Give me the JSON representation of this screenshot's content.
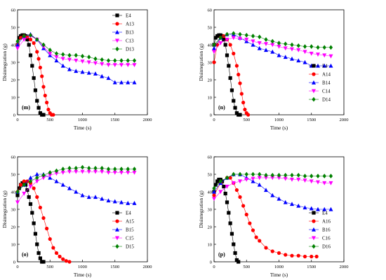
{
  "colors": {
    "E4": "#000000",
    "A": "#ff0000",
    "B": "#0000ff",
    "C": "#ff00ff",
    "D": "#008000"
  },
  "chart_data": [
    {
      "type": "scatter",
      "panel_label": "(m)",
      "xlabel": "Time (s)",
      "ylabel": "Disintegration (g)",
      "xlim": [
        0,
        2000
      ],
      "ylim": [
        0,
        60
      ],
      "xticks": [
        "0",
        "500",
        "1000",
        "1500",
        "2000"
      ],
      "yticks": [
        "0",
        "10",
        "20",
        "30",
        "40",
        "50",
        "60"
      ],
      "legend_position": "top-right",
      "series": [
        {
          "name": "E4",
          "marker": "square",
          "x": [
            0,
            25,
            50,
            75,
            100,
            125,
            150,
            175,
            200,
            225,
            250,
            275,
            300,
            325,
            350,
            375,
            400
          ],
          "y": [
            40,
            44,
            45,
            45.5,
            45.5,
            45,
            43,
            40,
            34,
            28,
            21,
            14,
            8,
            4,
            1,
            0,
            0
          ]
        },
        {
          "name": "A13",
          "marker": "circle",
          "x": [
            0,
            50,
            100,
            150,
            200,
            250,
            300,
            325,
            350,
            375,
            400,
            425,
            450,
            475,
            500,
            525,
            550
          ],
          "y": [
            40,
            44,
            45,
            44.5,
            43,
            41,
            36,
            32,
            27,
            22,
            16,
            11,
            7,
            3,
            1,
            0,
            0
          ]
        },
        {
          "name": "B13",
          "marker": "triangle-up",
          "x": [
            0,
            100,
            200,
            300,
            400,
            500,
            600,
            700,
            800,
            900,
            1000,
            1100,
            1200,
            1300,
            1400,
            1500,
            1600,
            1700,
            1800
          ],
          "y": [
            40,
            45,
            46,
            43,
            38,
            34,
            31,
            28,
            26,
            25,
            24.5,
            24,
            23.5,
            22,
            21,
            18.5,
            18.5,
            18.5,
            18.5
          ]
        },
        {
          "name": "C13",
          "marker": "triangle-down",
          "x": [
            0,
            100,
            200,
            300,
            400,
            500,
            600,
            700,
            800,
            900,
            1000,
            1100,
            1200,
            1300,
            1400,
            1500,
            1600,
            1700,
            1800
          ],
          "y": [
            38,
            43,
            45,
            43,
            39,
            35,
            33,
            32,
            31.5,
            31,
            30.5,
            30,
            29.5,
            29,
            28.5,
            28.5,
            28.5,
            28.5,
            28.5
          ]
        },
        {
          "name": "D13",
          "marker": "diamond",
          "x": [
            0,
            100,
            200,
            300,
            400,
            500,
            600,
            700,
            800,
            900,
            1000,
            1100,
            1200,
            1300,
            1400,
            1500,
            1600,
            1700,
            1800
          ],
          "y": [
            42,
            45,
            45.5,
            43,
            40,
            37,
            35,
            34.5,
            34,
            34,
            33.5,
            33,
            32,
            31.5,
            31,
            31,
            31,
            31,
            31
          ]
        }
      ]
    },
    {
      "type": "scatter",
      "panel_label": "(n)",
      "xlabel": "Time (s)",
      "ylabel": "Disintegration (g)",
      "xlim": [
        0,
        2000
      ],
      "ylim": [
        0,
        60
      ],
      "xticks": [
        "0",
        "500",
        "1000",
        "1500",
        "2000"
      ],
      "yticks": [
        "0",
        "10",
        "20",
        "30",
        "40",
        "50",
        "60"
      ],
      "legend_position": "bottom-right",
      "series": [
        {
          "name": "E4",
          "marker": "square",
          "x": [
            0,
            25,
            50,
            75,
            100,
            125,
            150,
            175,
            200,
            225,
            250,
            275,
            300,
            325,
            350,
            375,
            400
          ],
          "y": [
            40,
            44,
            45,
            45.5,
            45.5,
            45,
            43,
            40,
            34,
            28,
            21,
            14,
            8,
            4,
            1,
            0,
            0
          ]
        },
        {
          "name": "A14",
          "marker": "circle",
          "x": [
            0,
            50,
            100,
            150,
            200,
            250,
            300,
            350,
            375,
            400,
            425,
            450,
            475,
            500,
            525
          ],
          "y": [
            30,
            40,
            44,
            45,
            43,
            40,
            35,
            28,
            23,
            18,
            12,
            7,
            3,
            1,
            0
          ]
        },
        {
          "name": "B14",
          "marker": "triangle-up",
          "x": [
            0,
            100,
            200,
            300,
            400,
            500,
            600,
            700,
            800,
            900,
            1000,
            1100,
            1200,
            1300,
            1400,
            1500,
            1600,
            1700,
            1800
          ],
          "y": [
            38,
            44,
            46,
            46,
            44,
            42,
            40,
            38,
            37,
            36,
            34,
            33,
            32,
            31,
            30,
            28,
            28,
            28,
            28
          ]
        },
        {
          "name": "C14",
          "marker": "triangle-down",
          "x": [
            0,
            100,
            200,
            300,
            400,
            500,
            600,
            700,
            800,
            900,
            1000,
            1100,
            1200,
            1300,
            1400,
            1500,
            1600,
            1700,
            1800
          ],
          "y": [
            36,
            41,
            43,
            44,
            43.5,
            43,
            42,
            41,
            40.5,
            40,
            39,
            38,
            37.5,
            37,
            36,
            35,
            34.5,
            34,
            33.5
          ]
        },
        {
          "name": "D14",
          "marker": "diamond",
          "x": [
            0,
            100,
            200,
            300,
            400,
            500,
            600,
            700,
            800,
            900,
            1000,
            1100,
            1200,
            1300,
            1400,
            1500,
            1600,
            1700,
            1800
          ],
          "y": [
            40,
            44,
            46,
            46.5,
            46,
            45.5,
            45,
            44.5,
            43,
            42,
            41,
            40.5,
            40,
            39.5,
            39,
            39,
            38.5,
            38.5,
            38.5
          ]
        }
      ]
    },
    {
      "type": "scatter",
      "panel_label": "(o)",
      "xlabel": "Time (s)",
      "ylabel": "Disintegration (g)",
      "xlim": [
        0,
        2000
      ],
      "ylim": [
        0,
        60
      ],
      "xticks": [
        "0",
        "500",
        "1000",
        "1500",
        "2000"
      ],
      "yticks": [
        "0",
        "10",
        "20",
        "30",
        "40",
        "50",
        "60"
      ],
      "legend_position": "bottom-right",
      "series": [
        {
          "name": "E4",
          "marker": "square",
          "x": [
            0,
            25,
            50,
            75,
            100,
            125,
            150,
            175,
            200,
            225,
            250,
            275,
            300,
            325,
            350,
            375,
            400
          ],
          "y": [
            38,
            42,
            44,
            45,
            45,
            44,
            41,
            37,
            33,
            28,
            22,
            16,
            10,
            5,
            2,
            0,
            0
          ]
        },
        {
          "name": "A15",
          "marker": "circle",
          "x": [
            0,
            50,
            100,
            150,
            200,
            250,
            300,
            350,
            400,
            450,
            500,
            550,
            600,
            650,
            700,
            750,
            800
          ],
          "y": [
            40,
            44,
            46,
            46,
            45,
            42,
            37,
            31,
            25,
            19,
            13,
            8,
            5,
            3,
            1.5,
            0.5,
            0
          ]
        },
        {
          "name": "B15",
          "marker": "triangle-up",
          "x": [
            0,
            100,
            200,
            300,
            400,
            500,
            600,
            700,
            800,
            900,
            1000,
            1100,
            1200,
            1300,
            1400,
            1500,
            1600,
            1700,
            1800
          ],
          "y": [
            40,
            44,
            48,
            50,
            50,
            48,
            46,
            44,
            42,
            40,
            38,
            37,
            37,
            36,
            35,
            34.5,
            34,
            33.5,
            33.5
          ]
        },
        {
          "name": "C15",
          "marker": "triangle-down",
          "x": [
            0,
            100,
            200,
            300,
            400,
            500,
            600,
            700,
            800,
            900,
            1000,
            1100,
            1200,
            1300,
            1400,
            1500,
            1600,
            1700,
            1800
          ],
          "y": [
            34,
            39,
            43,
            46,
            48,
            49.5,
            50.5,
            51,
            51.5,
            51.5,
            51.5,
            51.5,
            51.5,
            51.5,
            51,
            51,
            51,
            51,
            51
          ]
        },
        {
          "name": "D15",
          "marker": "diamond",
          "x": [
            0,
            100,
            200,
            300,
            400,
            500,
            600,
            700,
            800,
            900,
            1000,
            1100,
            1200,
            1300,
            1400,
            1500,
            1600,
            1700,
            1800
          ],
          "y": [
            40,
            44,
            46,
            48,
            49.5,
            51,
            52,
            53,
            53.5,
            53.5,
            54,
            53.5,
            53.5,
            53.5,
            53,
            53,
            53,
            53,
            53
          ]
        }
      ]
    },
    {
      "type": "scatter",
      "panel_label": "(p)",
      "xlabel": "Time (s)",
      "ylabel": "Disintegration (g)",
      "xlim": [
        0,
        2000
      ],
      "ylim": [
        0,
        60
      ],
      "xticks": [
        "0",
        "500",
        "1000",
        "1500",
        "2000"
      ],
      "yticks": [
        "0",
        "10",
        "20",
        "30",
        "40",
        "50",
        "60"
      ],
      "legend_position": "bottom-right",
      "series": [
        {
          "name": "E4",
          "marker": "square",
          "x": [
            0,
            25,
            50,
            75,
            100,
            125,
            150,
            175,
            200,
            225,
            250,
            275,
            300,
            325,
            350,
            375
          ],
          "y": [
            40,
            44,
            46,
            47,
            47,
            46,
            43,
            39,
            34,
            28,
            22,
            16,
            10,
            5,
            1,
            0
          ]
        },
        {
          "name": "A16",
          "marker": "circle",
          "x": [
            0,
            100,
            200,
            250,
            300,
            350,
            400,
            450,
            500,
            550,
            600,
            650,
            700,
            800,
            900,
            1000,
            1100,
            1200,
            1300,
            1400,
            1500,
            1580
          ],
          "y": [
            38,
            45,
            48,
            48,
            45,
            41,
            37,
            32,
            27,
            22,
            18,
            14,
            12,
            8,
            6,
            5,
            4,
            3.5,
            3.5,
            3,
            3,
            3
          ]
        },
        {
          "name": "B16",
          "marker": "triangle-up",
          "x": [
            0,
            100,
            200,
            300,
            400,
            500,
            600,
            700,
            800,
            900,
            1000,
            1100,
            1200,
            1300,
            1400,
            1500,
            1600,
            1700,
            1800
          ],
          "y": [
            40,
            45,
            48,
            50,
            50,
            48,
            46,
            44,
            41,
            38,
            36,
            34,
            33,
            32,
            31,
            30.5,
            30,
            30,
            30
          ]
        },
        {
          "name": "C16",
          "marker": "triangle-down",
          "x": [
            0,
            100,
            200,
            300,
            400,
            500,
            600,
            700,
            800,
            900,
            1000,
            1100,
            1200,
            1300,
            1400,
            1500,
            1600,
            1700,
            1800
          ],
          "y": [
            36,
            40,
            43,
            45,
            46,
            47,
            47.5,
            48,
            48,
            48,
            48,
            47.5,
            47,
            47,
            46.5,
            46,
            45.5,
            45,
            45
          ]
        },
        {
          "name": "D16",
          "marker": "diamond",
          "x": [
            0,
            100,
            200,
            300,
            400,
            500,
            600,
            700,
            800,
            900,
            1000,
            1100,
            1200,
            1300,
            1400,
            1500,
            1600,
            1700,
            1800
          ],
          "y": [
            42,
            46,
            48,
            50,
            50,
            50,
            50,
            50,
            49.5,
            49.5,
            49.5,
            49.5,
            49.5,
            49.5,
            49,
            49,
            49,
            49,
            49
          ]
        }
      ]
    }
  ]
}
